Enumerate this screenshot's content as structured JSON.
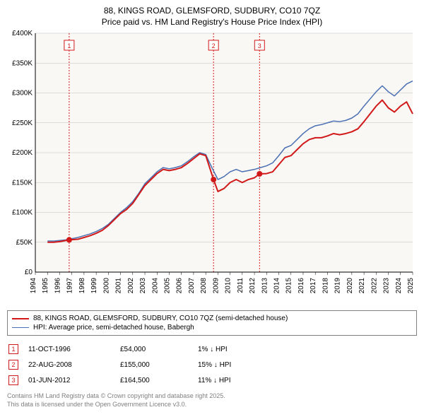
{
  "title_line1": "88, KINGS ROAD, GLEMSFORD, SUDBURY, CO10 7QZ",
  "title_line2": "Price paid vs. HM Land Registry's House Price Index (HPI)",
  "chart": {
    "type": "line",
    "plot_background": "#f9f8f4",
    "grid_color": "#bfbfbf",
    "axis_color": "#000000",
    "xlim": [
      1994,
      2025
    ],
    "ylim": [
      0,
      400000
    ],
    "ytick_step": 50000,
    "ytick_labels": [
      "£0",
      "£50K",
      "£100K",
      "£150K",
      "£200K",
      "£250K",
      "£300K",
      "£350K",
      "£400K"
    ],
    "xtick_step": 1,
    "xtick_labels": [
      "1994",
      "1995",
      "1996",
      "1997",
      "1998",
      "1999",
      "2000",
      "2001",
      "2002",
      "2003",
      "2004",
      "2005",
      "2006",
      "2007",
      "2008",
      "2009",
      "2010",
      "2011",
      "2012",
      "2013",
      "2014",
      "2015",
      "2016",
      "2017",
      "2018",
      "2019",
      "2020",
      "2021",
      "2022",
      "2023",
      "2024",
      "2025"
    ],
    "series": [
      {
        "key": "price_paid",
        "label": "88, KINGS ROAD, GLEMSFORD, SUDBURY, CO10 7QZ (semi-detached house)",
        "color": "#d11919",
        "width": 2,
        "points": [
          [
            1995.0,
            50000
          ],
          [
            1995.5,
            50000
          ],
          [
            1996.0,
            51000
          ],
          [
            1996.78,
            54000
          ],
          [
            1997.5,
            55000
          ],
          [
            1998.0,
            58000
          ],
          [
            1998.5,
            61000
          ],
          [
            1999.0,
            65000
          ],
          [
            1999.5,
            70000
          ],
          [
            2000.0,
            78000
          ],
          [
            2000.5,
            88000
          ],
          [
            2001.0,
            98000
          ],
          [
            2001.5,
            105000
          ],
          [
            2002.0,
            115000
          ],
          [
            2002.5,
            130000
          ],
          [
            2003.0,
            145000
          ],
          [
            2003.5,
            155000
          ],
          [
            2004.0,
            165000
          ],
          [
            2004.5,
            172000
          ],
          [
            2005.0,
            170000
          ],
          [
            2005.5,
            172000
          ],
          [
            2006.0,
            175000
          ],
          [
            2006.5,
            182000
          ],
          [
            2007.0,
            190000
          ],
          [
            2007.5,
            198000
          ],
          [
            2008.0,
            195000
          ],
          [
            2008.64,
            155000
          ],
          [
            2009.0,
            135000
          ],
          [
            2009.5,
            140000
          ],
          [
            2010.0,
            150000
          ],
          [
            2010.5,
            155000
          ],
          [
            2011.0,
            150000
          ],
          [
            2011.5,
            155000
          ],
          [
            2012.0,
            158000
          ],
          [
            2012.42,
            164500
          ],
          [
            2013.0,
            165000
          ],
          [
            2013.5,
            168000
          ],
          [
            2014.0,
            180000
          ],
          [
            2014.5,
            192000
          ],
          [
            2015.0,
            195000
          ],
          [
            2015.5,
            205000
          ],
          [
            2016.0,
            215000
          ],
          [
            2016.5,
            222000
          ],
          [
            2017.0,
            225000
          ],
          [
            2017.5,
            225000
          ],
          [
            2018.0,
            228000
          ],
          [
            2018.5,
            232000
          ],
          [
            2019.0,
            230000
          ],
          [
            2019.5,
            232000
          ],
          [
            2020.0,
            235000
          ],
          [
            2020.5,
            240000
          ],
          [
            2021.0,
            252000
          ],
          [
            2021.5,
            265000
          ],
          [
            2022.0,
            278000
          ],
          [
            2022.5,
            288000
          ],
          [
            2023.0,
            275000
          ],
          [
            2023.5,
            268000
          ],
          [
            2024.0,
            278000
          ],
          [
            2024.5,
            285000
          ],
          [
            2025.0,
            265000
          ]
        ]
      },
      {
        "key": "hpi",
        "label": "HPI: Average price, semi-detached house, Babergh",
        "color": "#4a6fb3",
        "width": 1.5,
        "points": [
          [
            1995.0,
            52000
          ],
          [
            1995.5,
            52000
          ],
          [
            1996.0,
            53000
          ],
          [
            1996.5,
            54000
          ],
          [
            1997.0,
            56000
          ],
          [
            1997.5,
            58000
          ],
          [
            1998.0,
            61000
          ],
          [
            1998.5,
            64000
          ],
          [
            1999.0,
            68000
          ],
          [
            1999.5,
            73000
          ],
          [
            2000.0,
            80000
          ],
          [
            2000.5,
            90000
          ],
          [
            2001.0,
            100000
          ],
          [
            2001.5,
            108000
          ],
          [
            2002.0,
            118000
          ],
          [
            2002.5,
            132000
          ],
          [
            2003.0,
            148000
          ],
          [
            2003.5,
            158000
          ],
          [
            2004.0,
            168000
          ],
          [
            2004.5,
            175000
          ],
          [
            2005.0,
            173000
          ],
          [
            2005.5,
            175000
          ],
          [
            2006.0,
            178000
          ],
          [
            2006.5,
            185000
          ],
          [
            2007.0,
            193000
          ],
          [
            2007.5,
            200000
          ],
          [
            2008.0,
            197000
          ],
          [
            2008.5,
            175000
          ],
          [
            2009.0,
            155000
          ],
          [
            2009.5,
            160000
          ],
          [
            2010.0,
            168000
          ],
          [
            2010.5,
            172000
          ],
          [
            2011.0,
            168000
          ],
          [
            2011.5,
            170000
          ],
          [
            2012.0,
            172000
          ],
          [
            2012.5,
            175000
          ],
          [
            2013.0,
            178000
          ],
          [
            2013.5,
            183000
          ],
          [
            2014.0,
            195000
          ],
          [
            2014.5,
            208000
          ],
          [
            2015.0,
            212000
          ],
          [
            2015.5,
            222000
          ],
          [
            2016.0,
            232000
          ],
          [
            2016.5,
            240000
          ],
          [
            2017.0,
            245000
          ],
          [
            2017.5,
            247000
          ],
          [
            2018.0,
            250000
          ],
          [
            2018.5,
            253000
          ],
          [
            2019.0,
            252000
          ],
          [
            2019.5,
            254000
          ],
          [
            2020.0,
            258000
          ],
          [
            2020.5,
            265000
          ],
          [
            2021.0,
            278000
          ],
          [
            2021.5,
            290000
          ],
          [
            2022.0,
            302000
          ],
          [
            2022.5,
            312000
          ],
          [
            2023.0,
            302000
          ],
          [
            2023.5,
            295000
          ],
          [
            2024.0,
            305000
          ],
          [
            2024.5,
            315000
          ],
          [
            2025.0,
            320000
          ]
        ]
      }
    ],
    "event_markers": [
      {
        "n": "1",
        "x": 1996.78,
        "y": 54000,
        "date": "11-OCT-1996",
        "price": "£54,000",
        "hpi": "1% ↓ HPI"
      },
      {
        "n": "2",
        "x": 2008.64,
        "y": 155000,
        "date": "22-AUG-2008",
        "price": "£155,000",
        "hpi": "15% ↓ HPI"
      },
      {
        "n": "3",
        "x": 2012.42,
        "y": 164500,
        "date": "01-JUN-2012",
        "price": "£164,500",
        "hpi": "11% ↓ HPI"
      }
    ],
    "event_line_color": "#d11919",
    "event_box_border": "#d11919",
    "event_box_fill": "#ffffff",
    "event_dot_color": "#d11919"
  },
  "footer_line1": "Contains HM Land Registry data © Crown copyright and database right 2025.",
  "footer_line2": "This data is licensed under the Open Government Licence v3.0."
}
